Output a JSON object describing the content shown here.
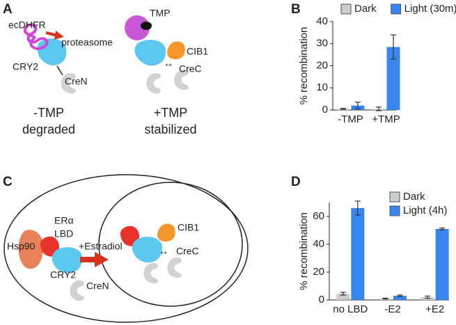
{
  "panels": [
    "A",
    "B",
    "C",
    "D"
  ],
  "diagram_a": {
    "ecdhfr": "ecDHFR",
    "proteasome": "proteasome",
    "cry2": "CRY2",
    "cren": "CreN",
    "minus_tmp": "-TMP",
    "degraded": "degraded",
    "tmp": "TMP",
    "cib1": "CIB1",
    "arrow": "↔",
    "crec": "CreC",
    "plus_tmp": "+TMP",
    "stabilized": "stabilized"
  },
  "diagram_c": {
    "hsp90": "Hsp90",
    "er": "ERα",
    "lbd": "LBD",
    "estradiol": "+Estradiol",
    "cry2": "CRY2",
    "cren": "CreN",
    "cib1": "CIB1",
    "arrow": "↔",
    "crec": "CreC"
  },
  "chart_data": [
    {
      "type": "bar",
      "y_label": "% recombination",
      "categories": [
        "-TMP",
        "+TMP"
      ],
      "series": [
        {
          "name": "Dark",
          "color": "#c9cdcd",
          "values": [
            0.5,
            0.5
          ],
          "errors": [
            0.2,
            0.8
          ]
        },
        {
          "name": "Light (30m)",
          "color": "#3a86f0",
          "values": [
            2,
            28.5
          ],
          "errors": [
            1.5,
            5.5
          ]
        }
      ],
      "ylim": [
        0,
        40
      ],
      "yticks": [
        0,
        10,
        20,
        30,
        40
      ],
      "legend_layout": "horizontal"
    },
    {
      "type": "bar",
      "y_label": "% recombination",
      "categories": [
        "no LBD",
        "-E2",
        "+E2"
      ],
      "series": [
        {
          "name": "Dark",
          "color": "#c9cdcd",
          "values": [
            4.5,
            1,
            2
          ],
          "errors": [
            1,
            0.3,
            0.8
          ]
        },
        {
          "name": "Light (4h)",
          "color": "#3a86f0",
          "values": [
            66,
            3,
            51
          ],
          "errors": [
            5,
            0.5,
            0.7
          ]
        }
      ],
      "ylim": [
        0,
        70
      ],
      "yticks": [
        0,
        20,
        40,
        60
      ],
      "legend_layout": "vertical"
    }
  ]
}
